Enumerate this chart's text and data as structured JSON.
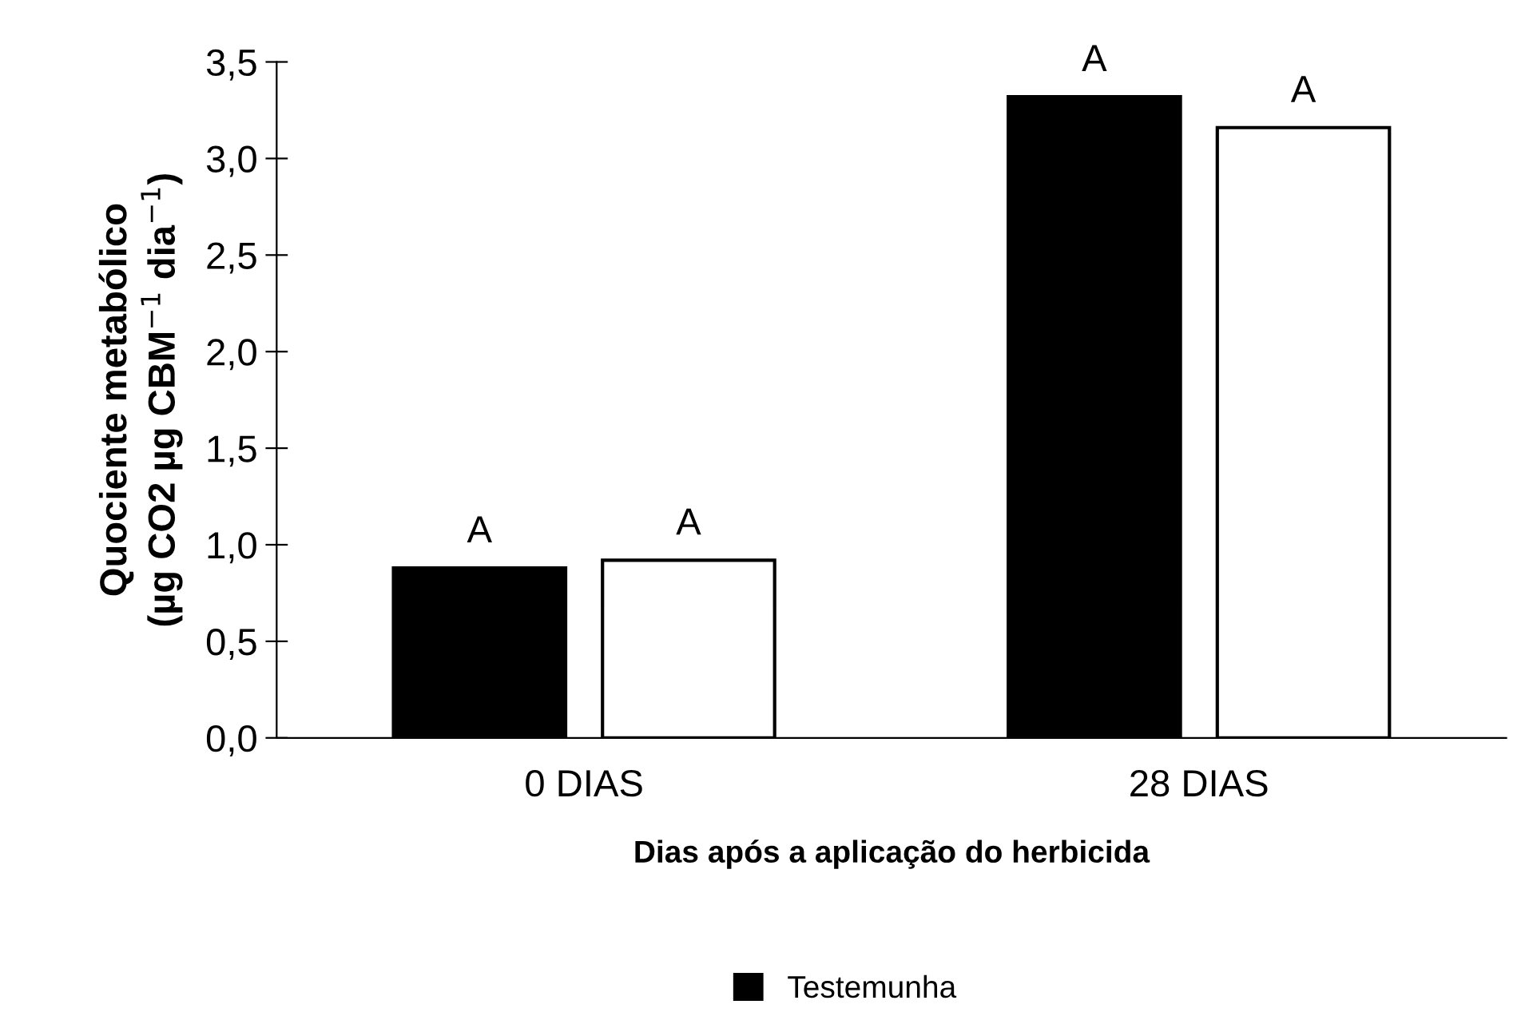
{
  "chart_data": {
    "type": "bar",
    "xlabel": "Dias após a aplicação do herbicida",
    "ylabel": "Quociente metabólico\n(µg CO2 µg CBM$^{−1}$ dia$^{−1}$)",
    "categories": [
      "0 DIAS",
      "28 DIAS"
    ],
    "series": [
      {
        "name": "Testemunha",
        "color": "#000000",
        "values": [
          0.88,
          3.32
        ],
        "value_labels": [
          "A",
          "A"
        ]
      },
      {
        "color": "#ffffff",
        "values": [
          0.92,
          3.16
        ],
        "value_labels": [
          "A",
          "A"
        ]
      }
    ],
    "ylim": [
      0,
      3.5
    ],
    "yticks": [
      {
        "value": 0,
        "label": "0,0"
      },
      {
        "value": 0.5,
        "label": "0,5"
      },
      {
        "value": 1,
        "label": "1,0"
      },
      {
        "value": 1.5,
        "label": "1,5"
      },
      {
        "value": 2,
        "label": "2,0"
      },
      {
        "value": 2.5,
        "label": "2,5"
      },
      {
        "value": 3,
        "label": "3,0"
      },
      {
        "value": 3.5,
        "label": "3,5"
      }
    ],
    "grid": false,
    "legend": "bottom"
  }
}
